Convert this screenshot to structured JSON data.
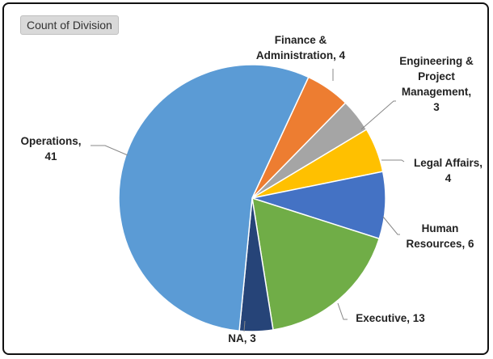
{
  "chart_data": {
    "type": "pie",
    "title": "Count of Division",
    "categories": [
      "Finance & Administration",
      "Engineering & Project Management",
      "Legal Affairs",
      "Human Resources",
      "Executive",
      "NA",
      "Operations"
    ],
    "values": [
      4,
      3,
      4,
      6,
      13,
      3,
      41
    ],
    "colors": [
      "#ed7d31",
      "#a5a5a5",
      "#ffc000",
      "#4472c4",
      "#70ad47",
      "#264478",
      "#5b9bd5"
    ],
    "label_separator": ", "
  }
}
